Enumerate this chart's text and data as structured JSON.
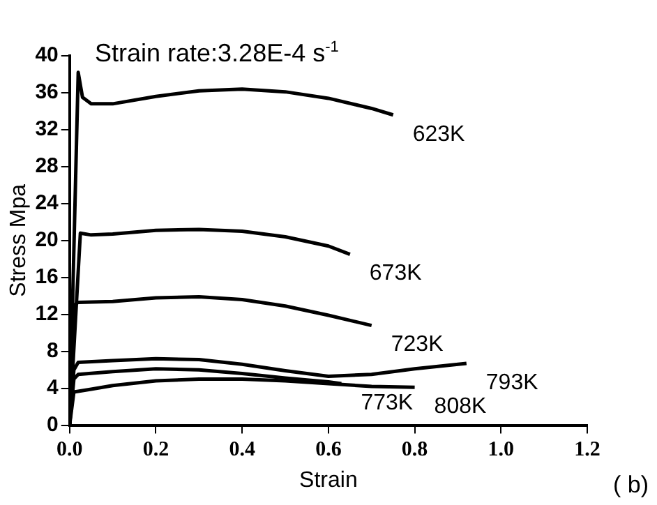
{
  "chart_data": {
    "type": "line",
    "title": "Strain rate:3.28E-4 s$^{-1}$",
    "xlabel": "Strain",
    "ylabel": "Stress Mpa",
    "annotations": [
      "( b)"
    ],
    "xlim": [
      0,
      1.2
    ],
    "xticks": [
      {
        "value": 0,
        "label": "0.0"
      },
      0.2,
      0.4,
      0.6,
      0.8,
      {
        "value": 1,
        "label": "1.0"
      },
      1.2
    ],
    "ylim": [
      0,
      40
    ],
    "yticks": [
      0,
      4,
      8,
      12,
      16,
      20,
      24,
      28,
      32,
      36,
      40
    ],
    "grid": false,
    "legend": false,
    "marker": "none",
    "line_style": "solid",
    "series": [
      {
        "name": "623K",
        "color": "#000000",
        "x": [
          0,
          0.02,
          0.03,
          0.05,
          0.1,
          0.2,
          0.3,
          0.4,
          0.5,
          0.6,
          0.7,
          0.75
        ],
        "values": [
          0,
          38.2,
          35.5,
          34.8,
          34.8,
          35.6,
          36.2,
          36.4,
          36.1,
          35.4,
          34.3,
          33.6
        ]
      },
      {
        "name": "673K",
        "color": "#000000",
        "x": [
          0,
          0.025,
          0.05,
          0.1,
          0.2,
          0.3,
          0.4,
          0.5,
          0.6,
          0.65
        ],
        "values": [
          0,
          20.8,
          20.6,
          20.7,
          21.1,
          21.2,
          21,
          20.4,
          19.4,
          18.5
        ]
      },
      {
        "name": "723K",
        "color": "#000000",
        "x": [
          0,
          0.01,
          0.02,
          0.1,
          0.2,
          0.3,
          0.4,
          0.5,
          0.6,
          0.7
        ],
        "values": [
          0,
          13,
          13.3,
          13.4,
          13.8,
          13.9,
          13.6,
          12.9,
          11.9,
          10.8
        ]
      },
      {
        "name": "773K",
        "color": "#000000",
        "x": [
          0,
          0.01,
          0.02,
          0.1,
          0.2,
          0.3,
          0.4,
          0.5,
          0.6,
          0.63
        ],
        "values": [
          0,
          5,
          5.5,
          5.8,
          6.1,
          6,
          5.6,
          5.1,
          4.7,
          4.5
        ]
      },
      {
        "name": "793K",
        "color": "#000000",
        "x": [
          0,
          0.01,
          0.02,
          0.1,
          0.2,
          0.3,
          0.4,
          0.5,
          0.6,
          0.7,
          0.8,
          0.92
        ],
        "values": [
          0,
          6,
          6.8,
          7,
          7.2,
          7.1,
          6.6,
          5.9,
          5.3,
          5.5,
          6.1,
          6.7
        ]
      },
      {
        "name": "808K",
        "color": "#000000",
        "x": [
          0,
          0.01,
          0.05,
          0.1,
          0.2,
          0.3,
          0.4,
          0.5,
          0.6,
          0.7,
          0.8
        ],
        "values": [
          0,
          3.6,
          3.9,
          4.3,
          4.8,
          5,
          5,
          4.8,
          4.5,
          4.2,
          4.1
        ]
      }
    ]
  }
}
